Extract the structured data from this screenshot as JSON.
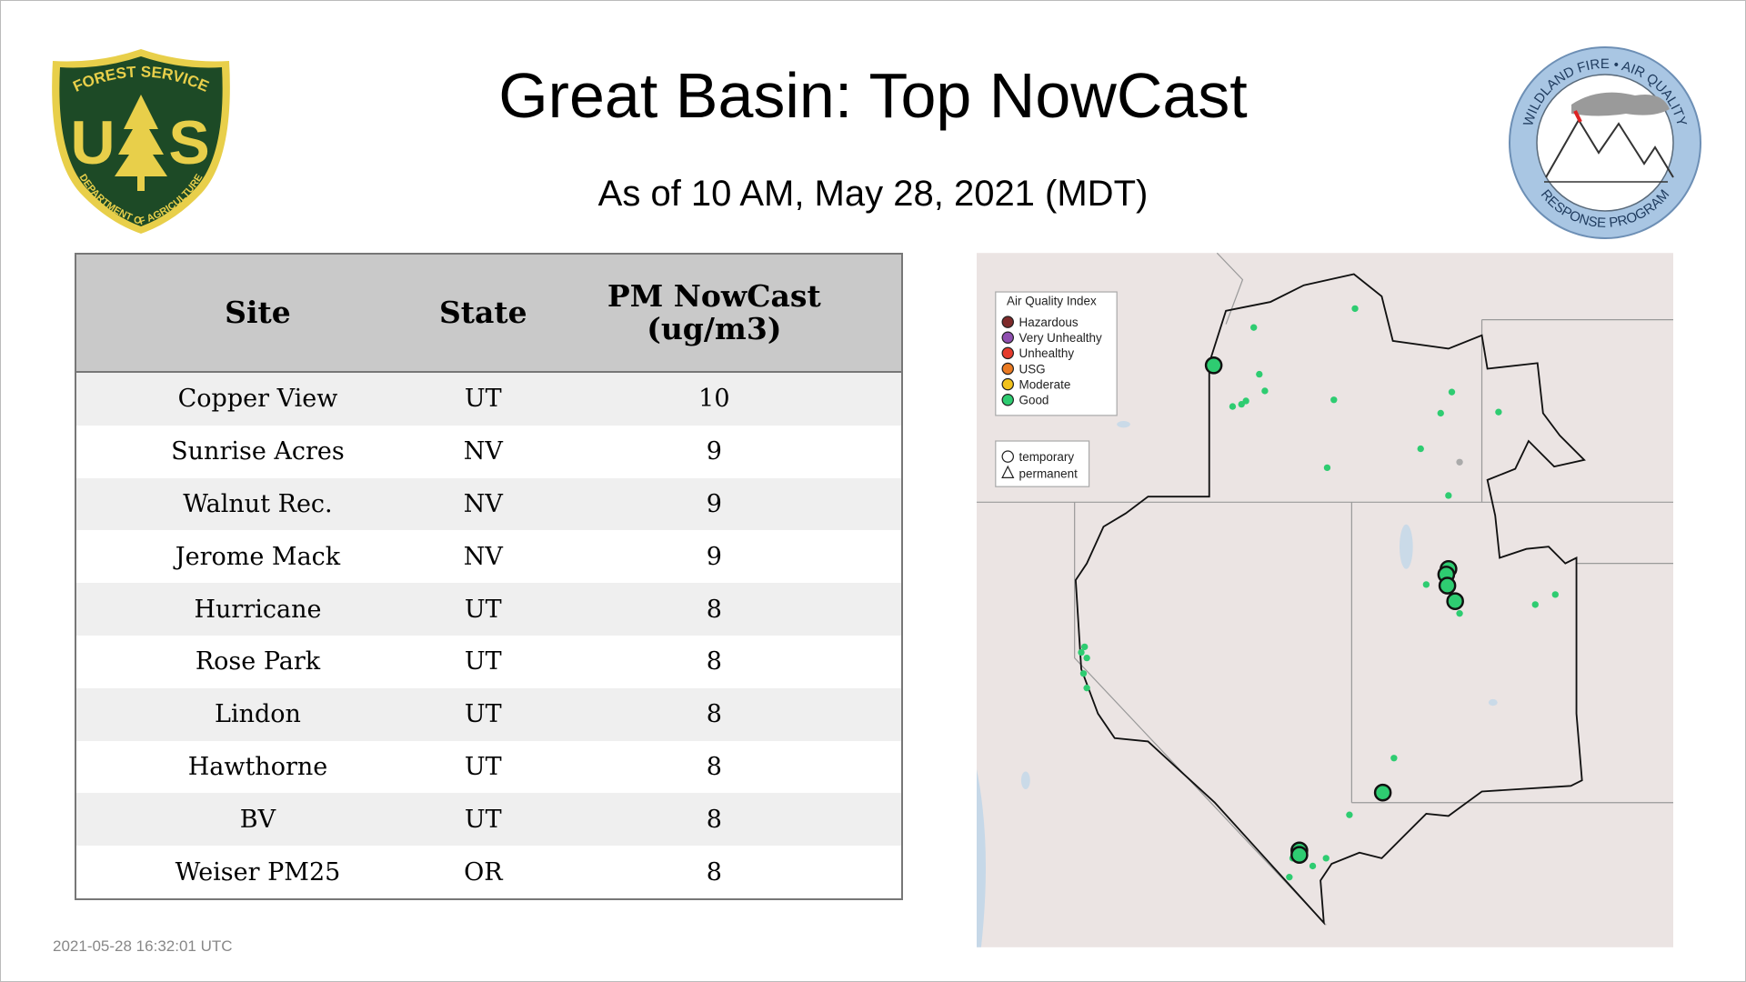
{
  "header": {
    "title": "Great Basin: Top NowCast",
    "subtitle": "As of 10 AM, May 28, 2021 (MDT)"
  },
  "logos": {
    "left": {
      "top": "FOREST SERVICE",
      "u": "U",
      "s": "S",
      "bottom": "DEPARTMENT OF AGRICULTURE"
    },
    "right": {
      "top": "WILDLAND FIRE • AIR QUALITY",
      "bottom": "RESPONSE PROGRAM"
    }
  },
  "table": {
    "headers": [
      "Site",
      "State",
      "PM NowCast (ug/m3)"
    ],
    "rows": [
      [
        "Copper View",
        "UT",
        10
      ],
      [
        "Sunrise Acres",
        "NV",
        9
      ],
      [
        "Walnut Rec.",
        "NV",
        9
      ],
      [
        "Jerome Mack",
        "NV",
        9
      ],
      [
        "Hurricane",
        "UT",
        8
      ],
      [
        "Rose Park",
        "UT",
        8
      ],
      [
        "Lindon",
        "UT",
        8
      ],
      [
        "Hawthorne",
        "UT",
        8
      ],
      [
        "BV",
        "UT",
        8
      ],
      [
        "Weiser PM25",
        "OR",
        8
      ]
    ]
  },
  "map": {
    "legend": {
      "title": "Air Quality Index",
      "items": [
        {
          "label": "Hazardous",
          "color": "#7e2a2a"
        },
        {
          "label": "Very Unhealthy",
          "color": "#8f4fb0"
        },
        {
          "label": "Unhealthy",
          "color": "#e53b2c"
        },
        {
          "label": "USG",
          "color": "#ea7a22"
        },
        {
          "label": "Moderate",
          "color": "#f2c21b"
        },
        {
          "label": "Good",
          "color": "#2ecc71"
        }
      ],
      "shapes": [
        "temporary",
        "permanent"
      ]
    }
  },
  "footer": {
    "timestamp": "2021-05-28 16:32:01 UTC"
  }
}
